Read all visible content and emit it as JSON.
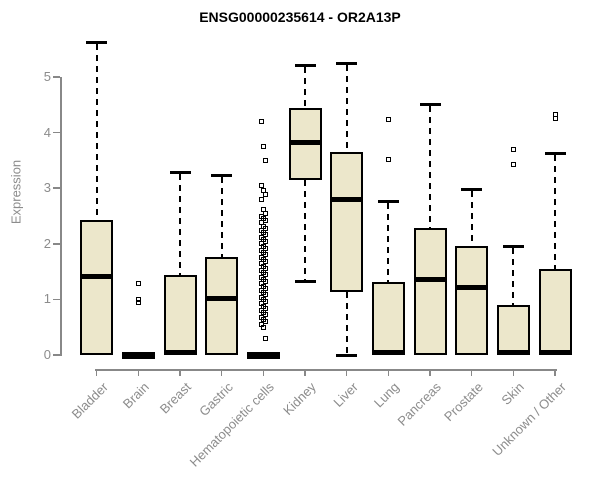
{
  "title": "ENSG00000235614 - OR2A13P",
  "chart_data": {
    "type": "boxplot",
    "title": "ENSG00000235614 - OR2A13P",
    "xlabel": "",
    "ylabel": "Expression",
    "ylim": [
      0,
      5
    ],
    "yticks": [
      "0",
      "1",
      "2",
      "3",
      "4",
      "5"
    ],
    "grid": false,
    "legend": "none",
    "colors": {
      "box_fill": "#ece7cb",
      "box_border": "#000000",
      "median": "#000000",
      "axis": "#888888",
      "tick_text": "#8c8c8c",
      "title_text": "#000000"
    },
    "categories": [
      "Bladder",
      "Brain",
      "Breast",
      "Gastric",
      "Hematopoietic cells",
      "Kidney",
      "Liver",
      "Lung",
      "Pancreas",
      "Prostate",
      "Skin",
      "Unknown / Other"
    ],
    "series": [
      {
        "name": "Bladder",
        "min": 0,
        "q1": 0,
        "median": 1.41,
        "q3": 2.42,
        "max": 5.62,
        "outliers": []
      },
      {
        "name": "Brain",
        "min": 0,
        "q1": 0,
        "median": 0,
        "q3": 0,
        "max": 0,
        "outliers": [
          1.28,
          1.0,
          0.94
        ]
      },
      {
        "name": "Breast",
        "min": 0,
        "q1": 0,
        "median": 0.05,
        "q3": 1.43,
        "max": 3.28,
        "outliers": []
      },
      {
        "name": "Gastric",
        "min": 0,
        "q1": 0,
        "median": 1.02,
        "q3": 1.77,
        "max": 3.22,
        "outliers": []
      },
      {
        "name": "Hematopoietic cells",
        "min": 0,
        "q1": 0,
        "median": 0,
        "q3": 0,
        "max": 0,
        "outliers": [
          4.2,
          3.75,
          3.5,
          3.05,
          2.95,
          2.88,
          2.8,
          2.62,
          2.55,
          2.5,
          2.45,
          2.42,
          2.38,
          2.32,
          2.28,
          2.24,
          2.2,
          2.16,
          2.12,
          2.08,
          2.04,
          2.0,
          1.96,
          1.92,
          1.88,
          1.84,
          1.8,
          1.76,
          1.72,
          1.68,
          1.64,
          1.6,
          1.56,
          1.52,
          1.48,
          1.44,
          1.4,
          1.36,
          1.32,
          1.28,
          1.24,
          1.2,
          1.16,
          1.12,
          1.08,
          1.04,
          1.0,
          0.96,
          0.92,
          0.88,
          0.84,
          0.8,
          0.76,
          0.72,
          0.68,
          0.64,
          0.6,
          0.55,
          0.5,
          0.29
        ]
      },
      {
        "name": "Kidney",
        "min": 1.32,
        "q1": 3.15,
        "median": 3.82,
        "q3": 4.45,
        "max": 5.2,
        "outliers": []
      },
      {
        "name": "Liver",
        "min": 0,
        "q1": 1.14,
        "median": 2.8,
        "q3": 3.66,
        "max": 5.25,
        "outliers": []
      },
      {
        "name": "Lung",
        "min": 0,
        "q1": 0,
        "median": 0.05,
        "q3": 1.32,
        "max": 2.76,
        "outliers": [
          4.24,
          3.52
        ]
      },
      {
        "name": "Pancreas",
        "min": 0,
        "q1": 0,
        "median": 1.35,
        "q3": 2.28,
        "max": 4.5,
        "outliers": []
      },
      {
        "name": "Prostate",
        "min": 0,
        "q1": 0,
        "median": 1.21,
        "q3": 1.96,
        "max": 2.97,
        "outliers": []
      },
      {
        "name": "Skin",
        "min": 0,
        "q1": 0,
        "median": 0.04,
        "q3": 0.9,
        "max": 1.95,
        "outliers": [
          3.69,
          3.42
        ]
      },
      {
        "name": "Unknown / Other",
        "min": 0,
        "q1": 0,
        "median": 0.04,
        "q3": 1.54,
        "max": 3.63,
        "outliers": [
          4.32,
          4.26
        ]
      }
    ]
  }
}
